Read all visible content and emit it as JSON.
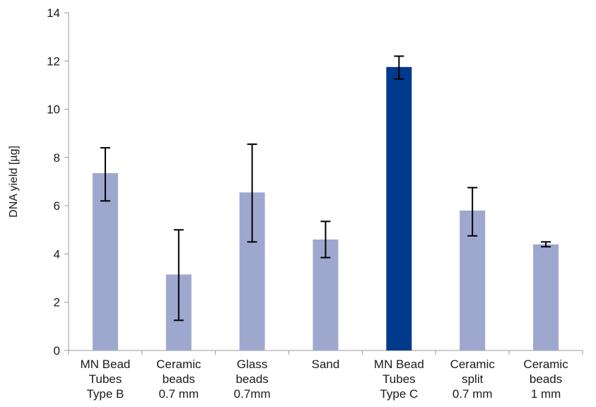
{
  "chart_data": {
    "type": "bar",
    "title": "",
    "xlabel": "",
    "ylabel": "DNA yield [µg]",
    "ylim": [
      0,
      14
    ],
    "yticks": [
      0,
      2,
      4,
      6,
      8,
      10,
      12,
      14
    ],
    "grid": false,
    "categories": [
      [
        "MN Bead",
        "Tubes",
        "Type B"
      ],
      [
        "Ceramic",
        "beads",
        "0.7 mm"
      ],
      [
        "Glass",
        "beads",
        "0.7mm"
      ],
      [
        "Sand"
      ],
      [
        "MN Bead",
        "Tubes",
        "Type C"
      ],
      [
        "Ceramic",
        "split",
        "0.7 mm"
      ],
      [
        "Ceramic",
        "beads",
        "1 mm"
      ]
    ],
    "values": [
      7.35,
      3.15,
      6.55,
      4.6,
      11.75,
      5.8,
      4.4
    ],
    "error_low": [
      6.2,
      1.25,
      4.5,
      3.85,
      11.25,
      4.75,
      4.3
    ],
    "error_high": [
      8.4,
      5.0,
      8.55,
      5.35,
      12.2,
      6.75,
      4.5
    ],
    "colors": [
      "#9ea8cf",
      "#9ea8cf",
      "#9ea8cf",
      "#9ea8cf",
      "#003a8c",
      "#9ea8cf",
      "#9ea8cf"
    ]
  }
}
